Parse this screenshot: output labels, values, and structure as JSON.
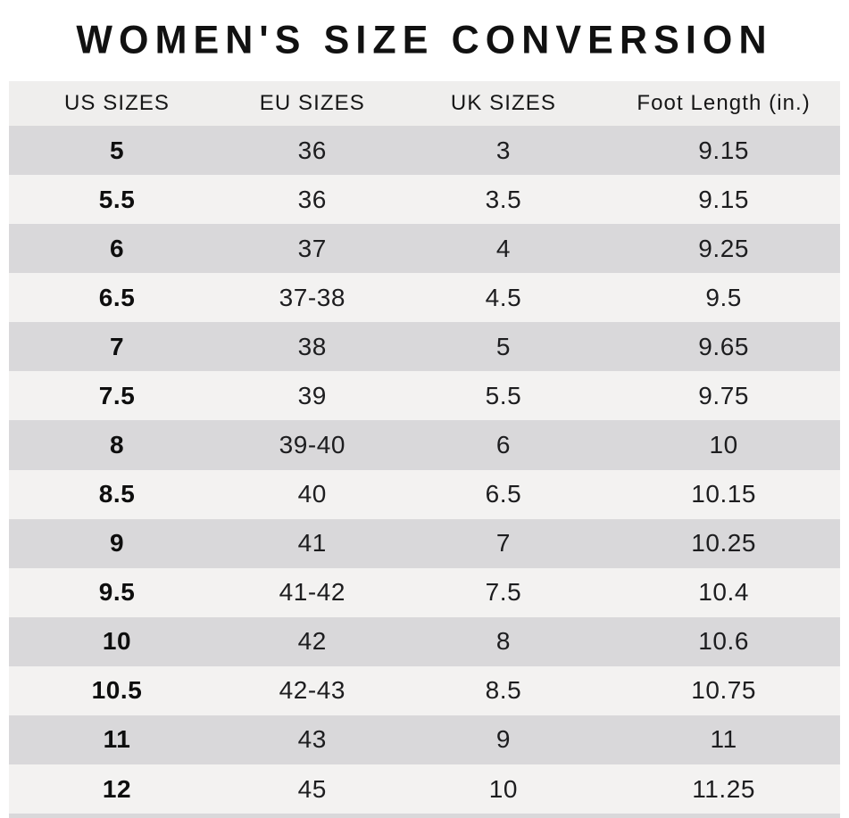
{
  "title": "WOMEN'S SIZE CONVERSION",
  "table": {
    "headers": {
      "us": "US SIZES",
      "eu": "EU SIZES",
      "uk": "UK SIZES",
      "foot": "Foot Length (in.)"
    },
    "rows": [
      {
        "us": "5",
        "eu": "36",
        "uk": "3",
        "foot": "9.15"
      },
      {
        "us": "5.5",
        "eu": "36",
        "uk": "3.5",
        "foot": "9.15"
      },
      {
        "us": "6",
        "eu": "37",
        "uk": "4",
        "foot": "9.25"
      },
      {
        "us": "6.5",
        "eu": "37-38",
        "uk": "4.5",
        "foot": "9.5"
      },
      {
        "us": "7",
        "eu": "38",
        "uk": "5",
        "foot": "9.65"
      },
      {
        "us": "7.5",
        "eu": "39",
        "uk": "5.5",
        "foot": "9.75"
      },
      {
        "us": "8",
        "eu": "39-40",
        "uk": "6",
        "foot": "10"
      },
      {
        "us": "8.5",
        "eu": "40",
        "uk": "6.5",
        "foot": "10.15"
      },
      {
        "us": "9",
        "eu": "41",
        "uk": "7",
        "foot": "10.25"
      },
      {
        "us": "9.5",
        "eu": "41-42",
        "uk": "7.5",
        "foot": "10.4"
      },
      {
        "us": "10",
        "eu": "42",
        "uk": "8",
        "foot": "10.6"
      },
      {
        "us": "10.5",
        "eu": "42-43",
        "uk": "8.5",
        "foot": "10.75"
      },
      {
        "us": "11",
        "eu": "43",
        "uk": "9",
        "foot": "11"
      },
      {
        "us": "12",
        "eu": "45",
        "uk": "10",
        "foot": "11.25"
      }
    ]
  },
  "colors": {
    "background": "#ffffff",
    "header_bg": "#efeeed",
    "row_dark": "#d9d8da",
    "row_light": "#f3f2f1",
    "text": "#161616"
  },
  "chart_data": {
    "type": "table",
    "title": "WOMEN'S SIZE CONVERSION",
    "columns": [
      "US SIZES",
      "EU SIZES",
      "UK SIZES",
      "Foot Length (in.)"
    ],
    "rows": [
      [
        "5",
        "36",
        "3",
        "9.15"
      ],
      [
        "5.5",
        "36",
        "3.5",
        "9.15"
      ],
      [
        "6",
        "37",
        "4",
        "9.25"
      ],
      [
        "6.5",
        "37-38",
        "4.5",
        "9.5"
      ],
      [
        "7",
        "38",
        "5",
        "9.65"
      ],
      [
        "7.5",
        "39",
        "5.5",
        "9.75"
      ],
      [
        "8",
        "39-40",
        "6",
        "10"
      ],
      [
        "8.5",
        "40",
        "6.5",
        "10.15"
      ],
      [
        "9",
        "41",
        "7",
        "10.25"
      ],
      [
        "9.5",
        "41-42",
        "7.5",
        "10.4"
      ],
      [
        "10",
        "42",
        "8",
        "10.6"
      ],
      [
        "10.5",
        "42-43",
        "8.5",
        "10.75"
      ],
      [
        "11",
        "43",
        "9",
        "11"
      ],
      [
        "12",
        "45",
        "10",
        "11.25"
      ]
    ],
    "layout": {
      "striped": true,
      "stripe_pattern": "first-row-dark",
      "header_position": "top"
    }
  }
}
